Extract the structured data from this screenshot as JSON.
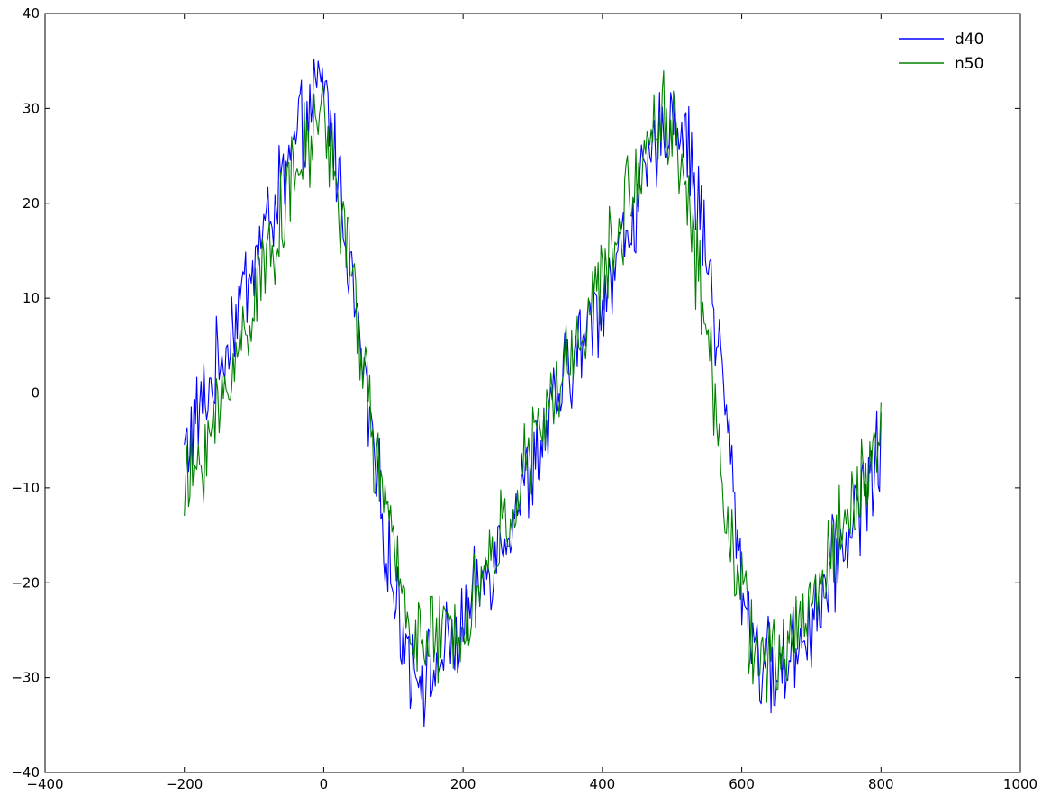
{
  "chart_data": {
    "type": "line",
    "title": "",
    "xlabel": "",
    "ylabel": "",
    "xlim": [
      -400,
      1000
    ],
    "ylim": [
      -40,
      40
    ],
    "x_ticks": [
      -400,
      -200,
      0,
      200,
      400,
      600,
      800,
      1000
    ],
    "y_ticks": [
      -40,
      -30,
      -20,
      -10,
      0,
      10,
      20,
      30,
      40
    ],
    "x_tick_labels": [
      "−400",
      "−200",
      "0",
      "200",
      "400",
      "600",
      "800",
      "1000"
    ],
    "y_tick_labels": [
      "−40",
      "−30",
      "−20",
      "−10",
      "0",
      "10",
      "20",
      "30",
      "40"
    ],
    "grid": false,
    "legend_position": "top-right",
    "series": [
      {
        "name": "d40",
        "color": "#0000ff",
        "x": [
          -200,
          -150,
          -100,
          -50,
          0,
          25,
          50,
          75,
          100,
          125,
          150,
          200,
          250,
          300,
          350,
          400,
          450,
          480,
          500,
          520,
          550,
          575,
          600,
          625,
          650,
          700,
          750,
          800
        ],
        "y": [
          -6,
          3,
          14,
          24,
          33,
          21,
          6,
          -8,
          -21,
          -28,
          -30,
          -25,
          -16,
          -8,
          2,
          10,
          20,
          26,
          30,
          27,
          15,
          0,
          -20,
          -28,
          -30,
          -24,
          -15,
          -6
        ]
      },
      {
        "name": "n50",
        "color": "#008000",
        "x": [
          -200,
          -150,
          -100,
          -50,
          0,
          25,
          50,
          75,
          100,
          125,
          150,
          200,
          250,
          300,
          350,
          400,
          450,
          480,
          500,
          520,
          550,
          575,
          600,
          625,
          650,
          700,
          750,
          800
        ],
        "y": [
          -11,
          -2,
          10,
          21,
          30,
          19,
          7,
          -7,
          -17,
          -24,
          -27,
          -24,
          -16,
          -6,
          3,
          12,
          23,
          30,
          28,
          22,
          6,
          -10,
          -22,
          -28,
          -29,
          -22,
          -13,
          -5
        ]
      }
    ]
  }
}
